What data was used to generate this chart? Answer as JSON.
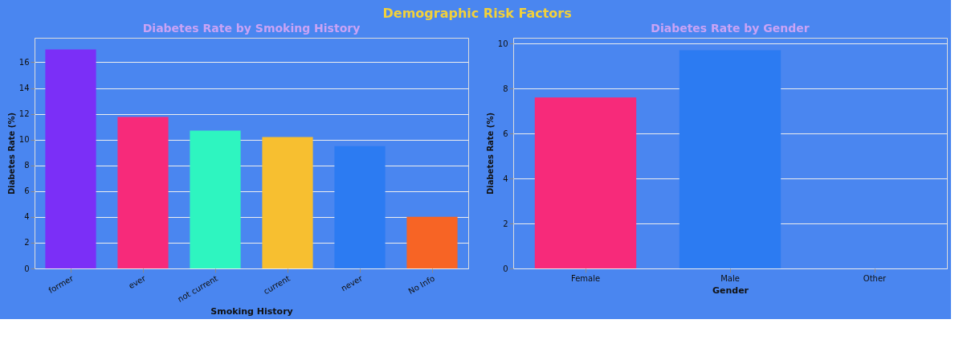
{
  "chart_data": [
    {
      "type": "bar",
      "title": "Diabetes Rate by Smoking History",
      "annotations": [
        "Demographic Risk Factors"
      ],
      "xlabel": "Smoking History",
      "ylabel": "Diabetes Rate (%)",
      "categories": [
        "former",
        "ever",
        "not current",
        "current",
        "never",
        "No Info"
      ],
      "values": [
        17.0,
        11.75,
        10.7,
        10.2,
        9.5,
        4.0
      ],
      "colors": [
        "#7b2ff7",
        "#f72a7a",
        "#2ef5c0",
        "#f7bf30",
        "#2c7bf2",
        "#f76425"
      ],
      "ylim": [
        0,
        17.9
      ],
      "yticks": [
        0,
        2,
        4,
        6,
        8,
        10,
        12,
        14,
        16
      ],
      "grid": "y"
    },
    {
      "type": "bar",
      "title": "Diabetes Rate by Gender",
      "xlabel": "Gender",
      "ylabel": "Diabetes Rate (%)",
      "categories": [
        "Female",
        "Male",
        "Other"
      ],
      "values": [
        7.6,
        9.7,
        0
      ],
      "colors": [
        "#f72a7a",
        "#2c7bf2",
        "#2ef5c0"
      ],
      "ylim": [
        0,
        10.25
      ],
      "yticks": [
        0,
        2,
        4,
        6,
        8,
        10
      ],
      "grid": "y"
    }
  ]
}
